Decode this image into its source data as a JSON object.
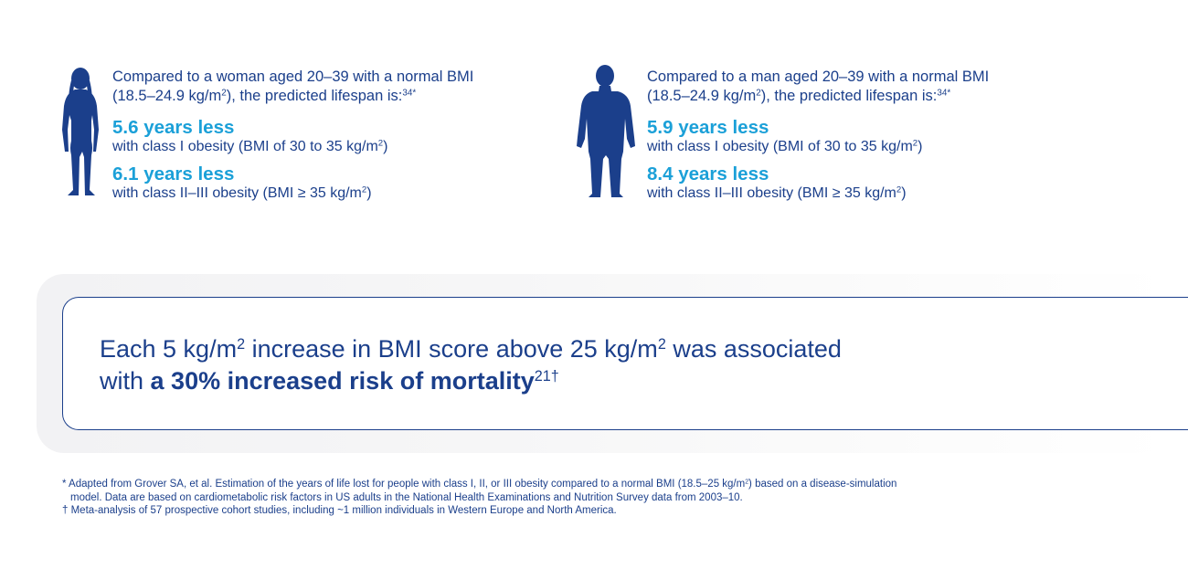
{
  "colors": {
    "navy": "#1b3f8b",
    "accent": "#1ba0d8"
  },
  "woman": {
    "intro_line1": "Compared to a woman aged 20–39 with a normal BMI",
    "intro_line2_a": "(18.5–24.9 kg/m",
    "intro_line2_b": "), the predicted lifespan is:",
    "intro_ref": "34*",
    "stat1_head": "5.6 years less",
    "stat1_text": "with class I obesity (BMI of 30 to 35 kg/m",
    "stat2_head": "6.1 years less",
    "stat2_text": "with class II–III obesity (BMI ≥ 35 kg/m"
  },
  "man": {
    "intro_line1": "Compared to a man aged 20–39 with a normal BMI",
    "intro_line2_a": "(18.5–24.9 kg/m",
    "intro_line2_b": "), the predicted lifespan is:",
    "intro_ref": "34*",
    "stat1_head": "5.9 years less",
    "stat1_text": "with class I obesity (BMI of 30 to 35 kg/m",
    "stat2_head": "8.4 years less",
    "stat2_text": "with class II–III obesity (BMI ≥ 35 kg/m"
  },
  "common": {
    "squared": "2",
    "close_paren": ")"
  },
  "callout": {
    "line1_a": "Each 5 kg/m",
    "line1_b": " increase in BMI score above 25 kg/m",
    "line1_c": " was associated",
    "line2_a": "with ",
    "line2_bold": "a 30% increased risk of mortality",
    "line2_ref": "21†"
  },
  "footnotes": {
    "fn1_line1_a": "* Adapted from Grover SA, et al. Estimation of the years of life lost for people with class I, II, or III obesity compared to a normal BMI (18.5–25 kg/m",
    "fn1_line1_b": ") based on a disease-simulation",
    "fn1_line2": "model. Data are based on cardiometabolic risk factors in US adults in the National Health Examinations and Nutrition Survey data from 2003–10.",
    "fn2": "† Meta-analysis of 57 prospective cohort studies, including ~1 million individuals in Western Europe and North America."
  }
}
